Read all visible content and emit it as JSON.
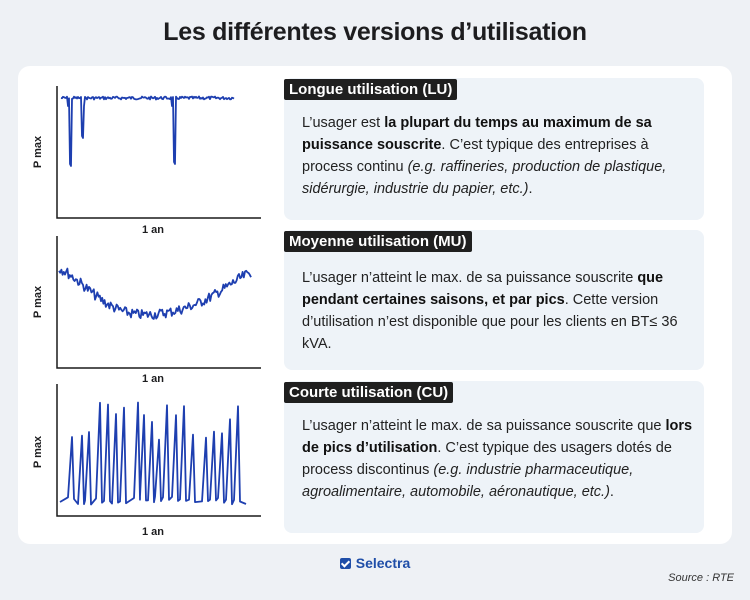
{
  "title": "Les différentes versions d’utilisation",
  "charts": [
    {
      "ylabel": "P max",
      "xlabel": "1 an"
    },
    {
      "ylabel": "P max",
      "xlabel": "1 an"
    },
    {
      "ylabel": "P max",
      "xlabel": "1 an"
    }
  ],
  "sections": [
    {
      "title": "Longue utilisation (LU)",
      "text": [
        {
          "t": "L’usager est "
        },
        {
          "t": "la plupart du temps au maximum de sa puissance souscrite",
          "b": true
        },
        {
          "t": ". C’est typique des entreprises à process continu "
        },
        {
          "t": "(e.g. raffineries, production de plastique, sidérurgie, industrie du papier, etc.)",
          "i": true
        },
        {
          "t": "."
        }
      ]
    },
    {
      "title": "Moyenne utilisation (MU)",
      "text": [
        {
          "t": "L’usager n’atteint le max. de sa puissance souscrite "
        },
        {
          "t": "que pendant certaines saisons, et par pics",
          "b": true
        },
        {
          "t": ". Cette version d’utilisation n’est disponible que pour les clients en BT≤ 36 kVA."
        }
      ]
    },
    {
      "title": "Courte utilisation (CU)",
      "text": [
        {
          "t": "L’usager n’atteint le max. de sa puissance souscrite que "
        },
        {
          "t": "lors de pics d’utilisation",
          "b": true
        },
        {
          "t": ". C’est typique des usagers dotés de process discontinus "
        },
        {
          "t": "(e.g. industrie pharmaceutique, agroalimentaire,  automobile, aéronautique, etc.)",
          "i": true
        },
        {
          "t": "."
        }
      ]
    }
  ],
  "logo": "Selectra",
  "source": "Source : RTE",
  "colors": {
    "line": "#1e3fb0",
    "axis": "#1a1a1a",
    "box": "#eef3f8",
    "title_bg": "#1f1f1f"
  }
}
